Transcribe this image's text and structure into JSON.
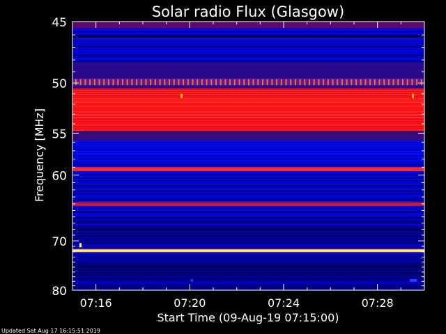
{
  "chart_data": {
    "type": "heatmap",
    "title": "Solar radio Flux (Glasgow)",
    "xlabel": "Start Time (09-Aug-19 07:15:00)",
    "ylabel": "Frequency [MHz]",
    "footer": "Updated Sat Aug 17 16:15:51 2019",
    "x_range_minutes": [
      0,
      15
    ],
    "x_ticks": [
      {
        "label": "07:16",
        "minute": 1
      },
      {
        "label": "07:20",
        "minute": 5
      },
      {
        "label": "07:24",
        "minute": 9
      },
      {
        "label": "07:28",
        "minute": 13
      }
    ],
    "y_range_mhz": [
      45,
      80
    ],
    "y_scale": "reciprocal",
    "y_ticks": [
      45,
      50,
      55,
      60,
      70,
      80
    ],
    "y_tick_labels": [
      "45",
      "50",
      "55",
      "60",
      "70",
      "80"
    ],
    "bands": [
      {
        "f0": 49.6,
        "f1": 50.2,
        "color": "#5a1a9a",
        "note": "dotted-emission"
      },
      {
        "f0": 50.5,
        "f1": 54.7,
        "color": "#ff2020"
      },
      {
        "f0": 59.0,
        "f1": 59.5,
        "color": "#ff2a2a"
      },
      {
        "f0": 63.8,
        "f1": 64.3,
        "color": "#d01a3a"
      },
      {
        "f0": 71.6,
        "f1": 71.95,
        "color": "#ffffa0"
      }
    ],
    "colors": {
      "background": "#000000",
      "low_intensity": "#0000c0",
      "mid_intensity": "#ff0000",
      "high_intensity": "#ffffff"
    },
    "grid": false
  }
}
